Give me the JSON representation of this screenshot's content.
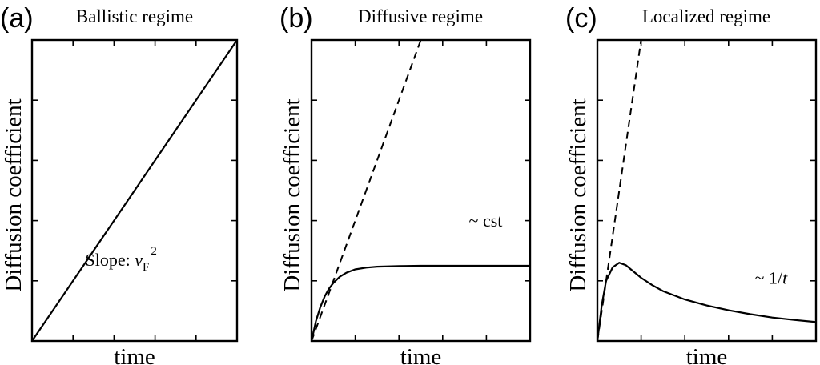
{
  "chart_data": [
    {
      "type": "line",
      "panel_label": "(a)",
      "title": "Ballistic regime",
      "xlabel": "time",
      "ylabel": "Diffusion coefficient",
      "xlim": [
        0,
        1
      ],
      "ylim": [
        0,
        1
      ],
      "grid": false,
      "annotation": {
        "text": "Slope: ",
        "var": "v",
        "sub": "F",
        "sup": "2",
        "x": 0.26,
        "y": 0.25
      },
      "series": [
        {
          "style": "solid",
          "x": [
            0,
            1
          ],
          "y": [
            0,
            1
          ]
        }
      ]
    },
    {
      "type": "line",
      "panel_label": "(b)",
      "title": "Diffusive regime",
      "xlabel": "time",
      "ylabel": "Diffusion coefficient",
      "xlim": [
        0,
        1
      ],
      "ylim": [
        0,
        1
      ],
      "grid": false,
      "annotation": {
        "text": "~ cst",
        "x": 0.72,
        "y": 0.38
      },
      "series": [
        {
          "style": "dashed",
          "x": [
            0,
            0.5
          ],
          "y": [
            0,
            1
          ]
        },
        {
          "style": "solid",
          "x": [
            0,
            0.02,
            0.04,
            0.06,
            0.08,
            0.1,
            0.13,
            0.16,
            0.2,
            0.25,
            0.3,
            0.4,
            0.5,
            0.6,
            0.8,
            1.0
          ],
          "y": [
            0,
            0.066,
            0.112,
            0.148,
            0.174,
            0.193,
            0.214,
            0.227,
            0.238,
            0.244,
            0.247,
            0.249,
            0.25,
            0.25,
            0.25,
            0.25
          ]
        }
      ]
    },
    {
      "type": "line",
      "panel_label": "(c)",
      "title": "Localized regime",
      "xlabel": "time",
      "ylabel": "Diffusion coefficient",
      "xlim": [
        0,
        1
      ],
      "ylim": [
        0,
        1
      ],
      "grid": false,
      "annotation": {
        "text": "~ 1/",
        "var": "t",
        "x": 0.72,
        "y": 0.19
      },
      "series": [
        {
          "style": "dashed",
          "x": [
            0,
            0.2
          ],
          "y": [
            0,
            1
          ]
        },
        {
          "style": "solid",
          "x": [
            0,
            0.02,
            0.04,
            0.07,
            0.1,
            0.13,
            0.16,
            0.2,
            0.25,
            0.3,
            0.4,
            0.5,
            0.6,
            0.7,
            0.8,
            0.9,
            1.0
          ],
          "y": [
            0,
            0.12,
            0.2,
            0.245,
            0.26,
            0.252,
            0.234,
            0.21,
            0.186,
            0.166,
            0.138,
            0.118,
            0.102,
            0.089,
            0.078,
            0.07,
            0.063
          ]
        }
      ]
    }
  ]
}
